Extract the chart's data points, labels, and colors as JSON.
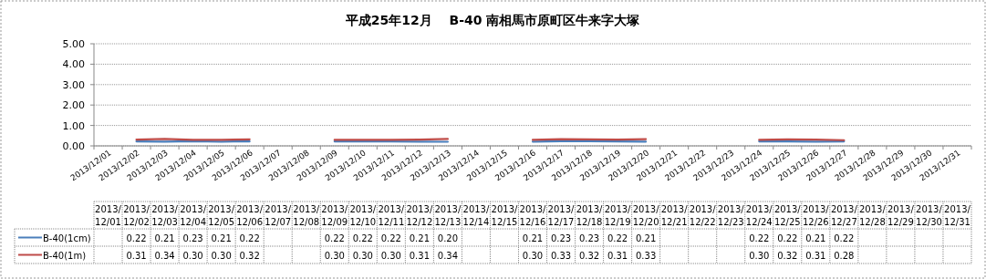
{
  "chart_data": {
    "type": "line",
    "title": "平成25年12月　 B-40 南相馬市原町区牛来字大塚",
    "categories": [
      "2013/12/01",
      "2013/12/02",
      "2013/12/03",
      "2013/12/04",
      "2013/12/05",
      "2013/12/06",
      "2013/12/07",
      "2013/12/08",
      "2013/12/09",
      "2013/12/10",
      "2013/12/11",
      "2013/12/12",
      "2013/12/13",
      "2013/12/14",
      "2013/12/15",
      "2013/12/16",
      "2013/12/17",
      "2013/12/18",
      "2013/12/19",
      "2013/12/20",
      "2013/12/21",
      "2013/12/22",
      "2013/12/23",
      "2013/12/24",
      "2013/12/25",
      "2013/12/26",
      "2013/12/27",
      "2013/12/28",
      "2013/12/29",
      "2013/12/30",
      "2013/12/31"
    ],
    "series": [
      {
        "name": "B-40(1cm)",
        "color": "#4a7ebb",
        "values": [
          null,
          0.22,
          0.21,
          0.23,
          0.21,
          0.22,
          null,
          null,
          0.22,
          0.22,
          0.22,
          0.21,
          0.2,
          null,
          null,
          0.21,
          0.23,
          0.23,
          0.22,
          0.21,
          null,
          null,
          null,
          0.22,
          0.22,
          0.21,
          0.22,
          null,
          null,
          null,
          null
        ],
        "value_labels": [
          null,
          "0.22",
          "0.21",
          "0.23",
          "0.21",
          "0.22",
          null,
          null,
          "0.22",
          "0.22",
          "0.22",
          "0.21",
          "0.20",
          null,
          null,
          "0.21",
          "0.23",
          "0.23",
          "0.22",
          "0.21",
          null,
          null,
          null,
          "0.22",
          "0.22",
          "0.21",
          "0.22",
          null,
          null,
          null,
          null
        ]
      },
      {
        "name": "B-40(1m)",
        "color": "#be4b48",
        "values": [
          null,
          0.31,
          0.34,
          0.3,
          0.3,
          0.32,
          null,
          null,
          0.3,
          0.3,
          0.3,
          0.31,
          0.34,
          null,
          null,
          0.3,
          0.33,
          0.32,
          0.31,
          0.33,
          null,
          null,
          null,
          0.3,
          0.32,
          0.31,
          0.28,
          null,
          null,
          null,
          null
        ],
        "value_labels": [
          null,
          "0.31",
          "0.34",
          "0.30",
          "0.30",
          "0.32",
          null,
          null,
          "0.30",
          "0.30",
          "0.30",
          "0.31",
          "0.34",
          null,
          null,
          "0.30",
          "0.33",
          "0.32",
          "0.31",
          "0.33",
          null,
          null,
          null,
          "0.30",
          "0.32",
          "0.31",
          "0.28",
          null,
          null,
          null,
          null
        ]
      }
    ],
    "ylim": [
      0,
      5
    ],
    "yticks": [
      {
        "value": 0,
        "label": "0.00"
      },
      {
        "value": 1,
        "label": "1.00"
      },
      {
        "value": 2,
        "label": "2.00"
      },
      {
        "value": 3,
        "label": "3.00"
      },
      {
        "value": 4,
        "label": "4.00"
      },
      {
        "value": 5,
        "label": "5.00"
      }
    ],
    "grid": "y",
    "legend": "bottom",
    "marker": "none",
    "line_style": "solid"
  }
}
